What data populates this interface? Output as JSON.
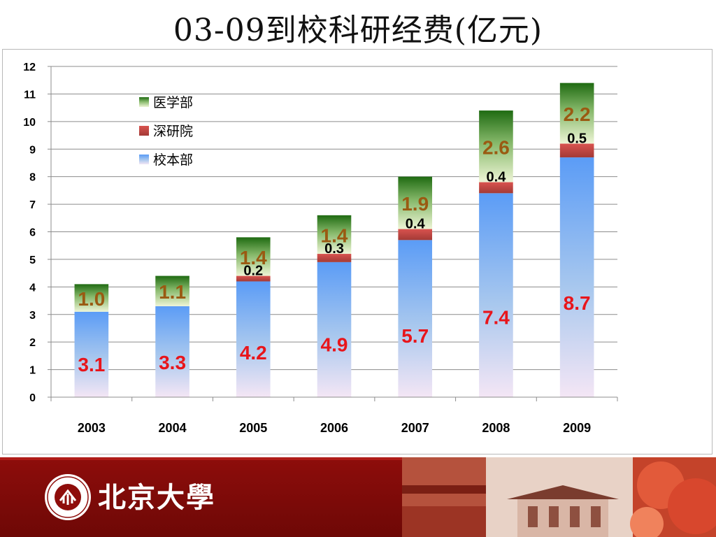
{
  "slide": {
    "title": "03-09到校科研经费(亿元)",
    "footer_name": "北京大學",
    "seal_text": "PEKING UNIVERSITY 1898"
  },
  "colors": {
    "med": "#2e7d1e",
    "shenzhen": "#c0504d",
    "main": "#6aa7f8",
    "label_main": "#e8151b",
    "label_med": "#9a5a12",
    "label_sz": "#000000",
    "footer": "#8e0d0b"
  },
  "chart_data": {
    "type": "bar",
    "stacked": true,
    "categories": [
      "2003",
      "2004",
      "2005",
      "2006",
      "2007",
      "2008",
      "2009"
    ],
    "series": [
      {
        "name": "校本部",
        "values": [
          3.1,
          3.3,
          4.2,
          4.9,
          5.7,
          7.4,
          8.7
        ],
        "labels": [
          "3.1",
          "3.3",
          "4.2",
          "4.9",
          "5.7",
          "7.4",
          "8.7"
        ]
      },
      {
        "name": "深研院",
        "values": [
          0,
          0,
          0.2,
          0.3,
          0.4,
          0.4,
          0.5
        ],
        "labels": [
          "",
          "",
          "0.2",
          "0.3",
          "0.4",
          "0.4",
          "0.5"
        ]
      },
      {
        "name": "医学部",
        "values": [
          1.0,
          1.1,
          1.4,
          1.4,
          1.9,
          2.6,
          2.2
        ],
        "labels": [
          "1.0",
          "1.1",
          "1.4",
          "1.4",
          "1.9",
          "2.6",
          "2.2"
        ]
      }
    ],
    "legend_order": [
      "医学部",
      "深研院",
      "校本部"
    ],
    "yticks": [
      "0",
      "1",
      "2",
      "3",
      "4",
      "5",
      "6",
      "7",
      "8",
      "9",
      "10",
      "11",
      "12"
    ],
    "ylim": [
      0,
      12
    ],
    "grid": true,
    "legend_position": "top-left"
  }
}
